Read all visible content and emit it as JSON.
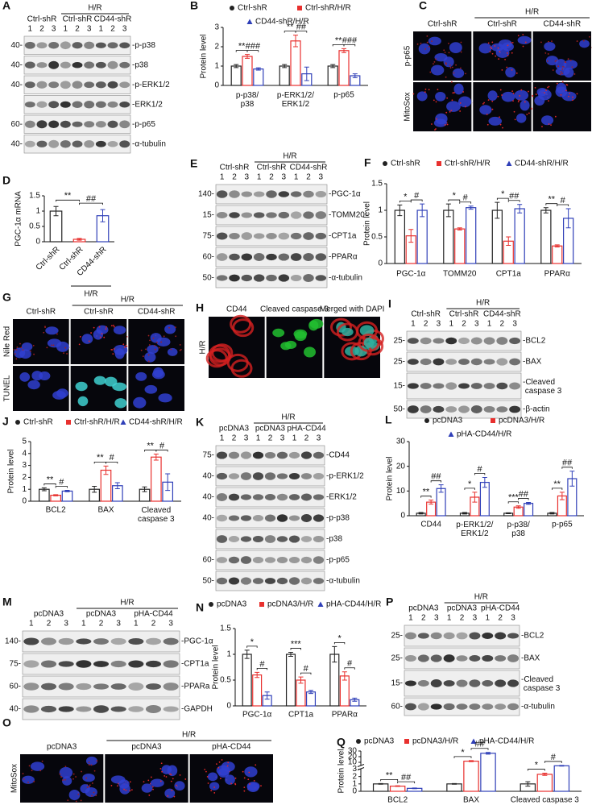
{
  "blots": [
    {
      "letter": "A",
      "top_label": "H/R",
      "groups": [
        "Ctrl-shR",
        "Ctrl-shR",
        "CD44-shR"
      ],
      "lanes": [
        "1",
        "2",
        "3",
        "1",
        "2",
        "3",
        "1",
        "2",
        "3"
      ],
      "rows": [
        {
          "mw": "40-",
          "label": "-p-p38"
        },
        {
          "mw": "40-",
          "label": "-p38"
        },
        {
          "mw": "40-",
          "label": "-p-ERK1/2"
        },
        {
          "label": "-ERK1/2"
        },
        {
          "mw": "60-",
          "label": "-p-p65"
        },
        {
          "mw": "40-",
          "label": "-α-tubulin"
        }
      ]
    },
    {
      "letter": "E",
      "top_label": "H/R",
      "groups": [
        "Ctrl-shR",
        "Ctrl-shR",
        "CD44-shR"
      ],
      "lanes": [
        "1",
        "2",
        "3",
        "1",
        "2",
        "3",
        "1",
        "2",
        "3"
      ],
      "rows": [
        {
          "mw": "140-",
          "label": "-PGC-1α"
        },
        {
          "mw": "15-",
          "label": "-TOMM20"
        },
        {
          "mw": "75-",
          "label": "-CPT1a"
        },
        {
          "mw": "60-",
          "label": "-PPARα"
        },
        {
          "mw": "50-",
          "label": "-α-tubulin"
        }
      ]
    },
    {
      "letter": "I",
      "top_label": "H/R",
      "groups": [
        "Ctrl-shR",
        "Ctrl-shR",
        "CD44-shR"
      ],
      "lanes": [
        "1",
        "2",
        "3",
        "1",
        "2",
        "3",
        "1",
        "2",
        "3"
      ],
      "rows": [
        {
          "mw": "25-",
          "label": "-BCL2"
        },
        {
          "mw": "25-",
          "label": "-BAX"
        },
        {
          "mw": "15-",
          "label": "-Cleaved\n caspase 3"
        },
        {
          "mw": "50-",
          "label": "-β-actin"
        }
      ]
    },
    {
      "letter": "K",
      "top_label": "H/R",
      "groups": [
        "pcDNA3",
        "pcDNA3",
        "pHA-CD44"
      ],
      "lanes": [
        "1",
        "2",
        "3",
        "1",
        "2",
        "3",
        "1",
        "2",
        "3"
      ],
      "rows": [
        {
          "mw": "75-",
          "label": "-CD44"
        },
        {
          "mw": "40-",
          "label": "-p-ERK1/2"
        },
        {
          "mw": "40-",
          "label": "-ERK1/2"
        },
        {
          "mw": "40-",
          "label": "-p-p38"
        },
        {
          "label": "-p38"
        },
        {
          "mw": "60-",
          "label": "-p-p65"
        },
        {
          "mw": "50-",
          "label": "-α-tubulin"
        }
      ]
    },
    {
      "letter": "M",
      "top_label": "H/R",
      "groups": [
        "pcDNA3",
        "pcDNA3",
        "pHA-CD44"
      ],
      "lanes": [
        "1",
        "2",
        "3",
        "1",
        "2",
        "3",
        "1",
        "2",
        "3"
      ],
      "rows": [
        {
          "mw": "140-",
          "label": "-PGC-1α"
        },
        {
          "mw": "75-",
          "label": "-CPT1a"
        },
        {
          "mw": "60-",
          "label": "-PPARa"
        },
        {
          "mw": "40-",
          "label": "-GAPDH"
        }
      ]
    },
    {
      "letter": "P",
      "top_label": "H/R",
      "groups": [
        "pcDNA3",
        "pcDNA3",
        "pHA-CD44"
      ],
      "lanes": [
        "1",
        "2",
        "3",
        "1",
        "2",
        "3",
        "1",
        "2",
        "3"
      ],
      "rows": [
        {
          "mw": "25-",
          "label": "-BCL2"
        },
        {
          "mw": "25-",
          "label": "-BAX"
        },
        {
          "mw": "15-",
          "label": "-Cleaved\n caspase 3"
        },
        {
          "mw": "60-",
          "label": "-α-tubulin"
        }
      ]
    }
  ],
  "images": [
    {
      "letter": "C",
      "top_label": "H/R",
      "columns": [
        "Ctrl-shR",
        "Ctrl-shR",
        "CD44-shR"
      ],
      "rows": [
        "p-p65",
        "MitoSox"
      ]
    },
    {
      "letter": "G",
      "top_label": "H/R",
      "columns": [
        "Ctrl-shR",
        "Ctrl-shR",
        "CD44-shR"
      ],
      "rows": [
        "Nile Red",
        "TUNEL"
      ]
    },
    {
      "letter": "H",
      "columns": [
        "CD44",
        "Cleaved caspase 3",
        "Merged with DAPI"
      ],
      "rows": [
        "H/R"
      ]
    },
    {
      "letter": "O",
      "top_label": "H/R",
      "columns": [
        "pcDNA3",
        "pcDNA3",
        "pHA-CD44"
      ],
      "rows": [
        "MitoSox"
      ]
    }
  ],
  "chart_data": [
    {
      "letter": "B",
      "type": "bar",
      "ylabel": "Protein level",
      "categories": [
        "p-p38/\np38",
        "p-ERK1/2/\nERK1/2",
        "p-p65"
      ],
      "ylim": [
        0,
        3
      ],
      "yticks": [
        0,
        1,
        2,
        3
      ],
      "series": [
        {
          "name": "Ctrl-shR",
          "color": "#222222",
          "marker": "circle",
          "values": [
            1,
            1,
            1
          ],
          "errors": [
            0.08,
            0.08,
            0.08
          ]
        },
        {
          "name": "Ctrl-shR/H/R",
          "color": "#e8302e",
          "marker": "square",
          "values": [
            1.5,
            2.3,
            1.8
          ],
          "errors": [
            0.1,
            0.3,
            0.1
          ]
        },
        {
          "name": "CD44-shR/H/R",
          "color": "#2f3fb8",
          "marker": "triangle",
          "values": [
            0.85,
            0.6,
            0.5
          ],
          "errors": [
            0.06,
            0.35,
            0.1
          ]
        }
      ],
      "annotations": [
        {
          "text": "**",
          "category": 0,
          "from": 0,
          "to": 1
        },
        {
          "text": "###",
          "category": 0,
          "from": 1,
          "to": 2
        },
        {
          "text": "**",
          "category": 1,
          "from": 0,
          "to": 1
        },
        {
          "text": "##",
          "category": 1,
          "from": 1,
          "to": 2
        },
        {
          "text": "**",
          "category": 2,
          "from": 0,
          "to": 1
        },
        {
          "text": "###",
          "category": 2,
          "from": 1,
          "to": 2
        }
      ]
    },
    {
      "letter": "D",
      "type": "bar",
      "ylabel": "PGC-1α mRNA",
      "categories": [
        "Ctrl-shR",
        "Ctrl-shR",
        "CD44-shR"
      ],
      "values": [
        1.0,
        0.08,
        0.85
      ],
      "errors": [
        0.15,
        0.03,
        0.2
      ],
      "colors": [
        "#222222",
        "#e8302e",
        "#2f3fb8"
      ],
      "ylim": [
        0,
        1.5
      ],
      "yticks": [
        0,
        0.5,
        1,
        1.5
      ],
      "groups": [
        {
          "label": "H/R",
          "from": 1,
          "to": 2
        }
      ],
      "annotations": [
        {
          "text": "**",
          "from": 0,
          "to": 1
        },
        {
          "text": "##",
          "from": 1,
          "to": 2
        }
      ]
    },
    {
      "letter": "F",
      "type": "bar",
      "ylabel": "Protein level",
      "categories": [
        "PGC-1α",
        "TOMM20",
        "CPT1a",
        "PPARα"
      ],
      "ylim": [
        0,
        1.5
      ],
      "yticks": [
        0,
        0.5,
        1,
        1.5
      ],
      "series": [
        {
          "name": "Ctrl-shR",
          "color": "#222222",
          "marker": "circle",
          "values": [
            1,
            1,
            1,
            1
          ],
          "errors": [
            0.1,
            0.12,
            0.15,
            0.05
          ]
        },
        {
          "name": "Ctrl-shR/H/R",
          "color": "#e8302e",
          "marker": "square",
          "values": [
            0.52,
            0.65,
            0.42,
            0.33
          ],
          "errors": [
            0.12,
            0.02,
            0.08,
            0.02
          ]
        },
        {
          "name": "CD44-shR/H/R",
          "color": "#2f3fb8",
          "marker": "triangle",
          "values": [
            1.0,
            1.05,
            1.03,
            0.85
          ],
          "errors": [
            0.12,
            0.03,
            0.08,
            0.18
          ]
        }
      ],
      "annotations": [
        {
          "text": "*",
          "category": 0,
          "from": 0,
          "to": 1
        },
        {
          "text": "#",
          "category": 0,
          "from": 1,
          "to": 2
        },
        {
          "text": "*",
          "category": 1,
          "from": 0,
          "to": 1
        },
        {
          "text": "#",
          "category": 1,
          "from": 1,
          "to": 2
        },
        {
          "text": "*",
          "category": 2,
          "from": 0,
          "to": 1
        },
        {
          "text": "##",
          "category": 2,
          "from": 1,
          "to": 2
        },
        {
          "text": "**",
          "category": 3,
          "from": 0,
          "to": 1
        },
        {
          "text": "#",
          "category": 3,
          "from": 1,
          "to": 2
        }
      ]
    },
    {
      "letter": "J",
      "type": "bar",
      "ylabel": "Protein level",
      "categories": [
        "BCL2",
        "BAX",
        "Cleaved\ncaspase 3"
      ],
      "ylim": [
        0,
        5
      ],
      "yticks": [
        0,
        1,
        2,
        3,
        4,
        5
      ],
      "series": [
        {
          "name": "Ctrl-shR",
          "color": "#222222",
          "marker": "circle",
          "values": [
            1,
            1,
            1
          ],
          "errors": [
            0.12,
            0.25,
            0.2
          ]
        },
        {
          "name": "Ctrl-shR/H/R",
          "color": "#e8302e",
          "marker": "square",
          "values": [
            0.5,
            2.6,
            3.7
          ],
          "errors": [
            0.05,
            0.35,
            0.25
          ]
        },
        {
          "name": "CD44-shR/H/R",
          "color": "#2f3fb8",
          "marker": "triangle",
          "values": [
            0.85,
            1.3,
            1.6
          ],
          "errors": [
            0.06,
            0.25,
            0.7
          ]
        }
      ],
      "annotations": [
        {
          "text": "**",
          "category": 0,
          "from": 0,
          "to": 1
        },
        {
          "text": "#",
          "category": 0,
          "from": 1,
          "to": 2
        },
        {
          "text": "**",
          "category": 1,
          "from": 0,
          "to": 1
        },
        {
          "text": "#",
          "category": 1,
          "from": 1,
          "to": 2
        },
        {
          "text": "**",
          "category": 2,
          "from": 0,
          "to": 1
        },
        {
          "text": "#",
          "category": 2,
          "from": 1,
          "to": 2
        }
      ]
    },
    {
      "letter": "L",
      "type": "bar",
      "ylabel": "Protein level",
      "categories": [
        "CD44",
        "p-ERK1/2/\nERK1/2",
        "p-p38/\np38",
        "p-p65"
      ],
      "ylim": [
        0,
        30
      ],
      "yticks": [
        0,
        10,
        20,
        30
      ],
      "series": [
        {
          "name": "pcDNA3",
          "color": "#222222",
          "marker": "circle",
          "values": [
            1,
            1,
            1,
            1
          ],
          "errors": [
            0.3,
            0.3,
            0.2,
            0.3
          ]
        },
        {
          "name": "pcDNA3/H/R",
          "color": "#e8302e",
          "marker": "square",
          "values": [
            5.5,
            7.5,
            3.5,
            8
          ],
          "errors": [
            0.8,
            2,
            0.5,
            1.5
          ]
        },
        {
          "name": "pHA-CD44/H/R",
          "color": "#2f3fb8",
          "marker": "triangle",
          "values": [
            11,
            13.5,
            5,
            15
          ],
          "errors": [
            1.5,
            2,
            0.4,
            3
          ]
        }
      ],
      "annotations": [
        {
          "text": "**",
          "category": 0,
          "from": 0,
          "to": 1
        },
        {
          "text": "##",
          "category": 0,
          "from": 1,
          "to": 2
        },
        {
          "text": "*",
          "category": 1,
          "from": 0,
          "to": 1
        },
        {
          "text": "#",
          "category": 1,
          "from": 1,
          "to": 2
        },
        {
          "text": "***",
          "category": 2,
          "from": 0,
          "to": 1
        },
        {
          "text": "##",
          "category": 2,
          "from": 1,
          "to": 2
        },
        {
          "text": "**",
          "category": 3,
          "from": 0,
          "to": 1
        },
        {
          "text": "##",
          "category": 3,
          "from": 1,
          "to": 2
        }
      ]
    },
    {
      "letter": "N",
      "type": "bar",
      "ylabel": "Protein level",
      "categories": [
        "PGC-1α",
        "CPT1a",
        "PPARα"
      ],
      "ylim": [
        0,
        1.5
      ],
      "yticks": [
        0,
        0.5,
        1,
        1.5
      ],
      "series": [
        {
          "name": "pcDNA3",
          "color": "#222222",
          "marker": "circle",
          "values": [
            1,
            1,
            1
          ],
          "errors": [
            0.08,
            0.04,
            0.15
          ]
        },
        {
          "name": "pcDNA3/H/R",
          "color": "#e8302e",
          "marker": "square",
          "values": [
            0.6,
            0.5,
            0.58
          ],
          "errors": [
            0.05,
            0.06,
            0.08
          ]
        },
        {
          "name": "pHA-CD44/H/R",
          "color": "#2f3fb8",
          "marker": "triangle",
          "values": [
            0.2,
            0.27,
            0.12
          ],
          "errors": [
            0.07,
            0.03,
            0.03
          ]
        }
      ],
      "annotations": [
        {
          "text": "*",
          "category": 0,
          "from": 0,
          "to": 1
        },
        {
          "text": "#",
          "category": 0,
          "from": 1,
          "to": 2
        },
        {
          "text": "***",
          "category": 1,
          "from": 0,
          "to": 1
        },
        {
          "text": "#",
          "category": 1,
          "from": 1,
          "to": 2
        },
        {
          "text": "*",
          "category": 2,
          "from": 0,
          "to": 1
        },
        {
          "text": "#",
          "category": 2,
          "from": 1,
          "to": 2
        }
      ]
    },
    {
      "letter": "Q",
      "type": "bar",
      "ylabel": "Protein level",
      "categories": [
        "BCL2",
        "BAX",
        "Cleaved caspase 3"
      ],
      "ylim": [
        0,
        30
      ],
      "yticks": [
        0,
        1,
        2,
        3,
        10,
        20,
        30
      ],
      "ybreak": [
        3,
        5
      ],
      "series": [
        {
          "name": "pcDNA3",
          "color": "#222222",
          "marker": "circle",
          "values": [
            1,
            1,
            1
          ],
          "errors": [
            0.05,
            0.05,
            0.3
          ]
        },
        {
          "name": "pcDNA3/H/R",
          "color": "#e8302e",
          "marker": "square",
          "values": [
            0.7,
            12,
            2.3
          ],
          "errors": [
            0.05,
            1,
            0.15
          ]
        },
        {
          "name": "pHA-CD44/H/R",
          "color": "#2f3fb8",
          "marker": "triangle",
          "values": [
            0.4,
            26,
            3.8
          ],
          "errors": [
            0.05,
            1.5,
            0.6
          ]
        }
      ],
      "annotations": [
        {
          "text": "**",
          "category": 0,
          "from": 0,
          "to": 1
        },
        {
          "text": "##",
          "category": 0,
          "from": 1,
          "to": 2
        },
        {
          "text": "*",
          "category": 1,
          "from": 0,
          "to": 1
        },
        {
          "text": "##",
          "category": 1,
          "from": 1,
          "to": 2
        },
        {
          "text": "*",
          "category": 2,
          "from": 0,
          "to": 1
        },
        {
          "text": "#",
          "category": 2,
          "from": 1,
          "to": 2
        }
      ]
    }
  ]
}
